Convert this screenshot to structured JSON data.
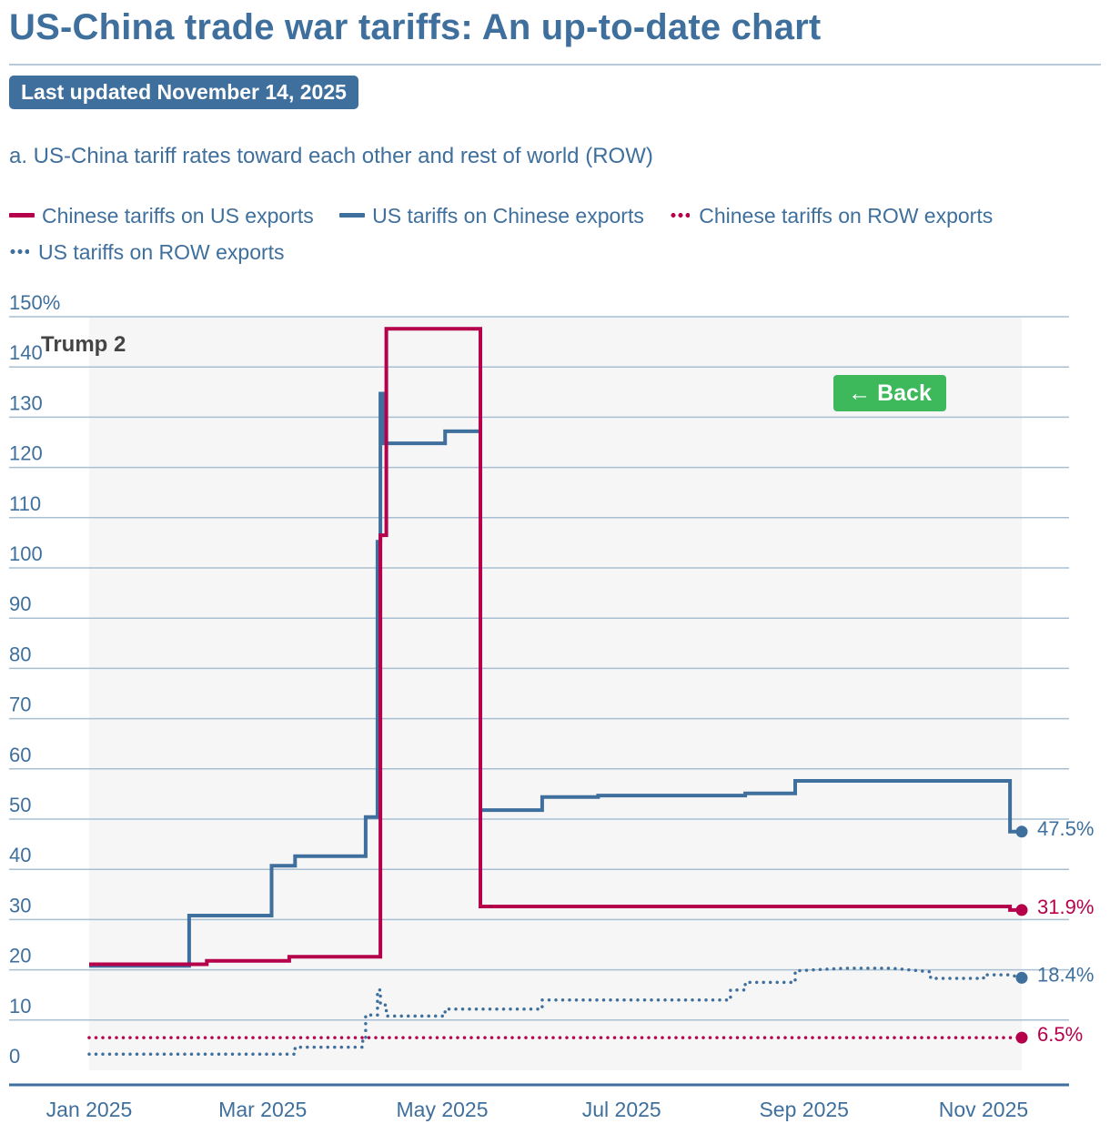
{
  "header": {
    "title": "US-China trade war tariffs: An up-to-date chart",
    "updated": "Last updated November 14, 2025",
    "subtitle": "a. US-China tariff rates toward each other and rest of world (ROW)"
  },
  "legend": [
    {
      "label": "Chinese tariffs on US exports",
      "style": "solid",
      "color": "#b5004c"
    },
    {
      "label": "US tariffs on Chinese exports",
      "style": "solid",
      "color": "#3f6f9c"
    },
    {
      "label": "Chinese tariffs on ROW exports",
      "style": "dotted",
      "color": "#b5004c"
    },
    {
      "label": "US tariffs on ROW exports",
      "style": "dotted",
      "color": "#3f6f9c"
    }
  ],
  "controls": {
    "back_label": "← Back"
  },
  "chart_data": {
    "type": "line",
    "annotation": "Trump 2",
    "y_unit_label": "150%",
    "ylim": [
      0,
      150
    ],
    "y_ticks": [
      0,
      10,
      20,
      30,
      40,
      50,
      60,
      70,
      80,
      90,
      100,
      110,
      120,
      130,
      140
    ],
    "xlim": [
      "2025-01-01",
      "2025-11-14"
    ],
    "x_ticks": [
      {
        "date": "2025-01-01",
        "label": "Jan 2025"
      },
      {
        "date": "2025-03-01",
        "label": "Mar 2025"
      },
      {
        "date": "2025-05-01",
        "label": "May 2025"
      },
      {
        "date": "2025-07-01",
        "label": "Jul 2025"
      },
      {
        "date": "2025-09-01",
        "label": "Sep 2025"
      },
      {
        "date": "2025-11-01",
        "label": "Nov 2025"
      }
    ],
    "shaded_region": [
      "2025-01-01",
      "2025-11-14"
    ],
    "grid": true,
    "legend_position": "top",
    "series": [
      {
        "name": "Chinese tariffs on US exports",
        "style": "solid",
        "color": "#b5004c",
        "end_label": "31.9%",
        "points": [
          [
            "2025-01-01",
            21.1
          ],
          [
            "2025-02-10",
            21.1
          ],
          [
            "2025-02-10",
            21.8
          ],
          [
            "2025-03-10",
            21.8
          ],
          [
            "2025-03-10",
            22.6
          ],
          [
            "2025-04-10",
            22.6
          ],
          [
            "2025-04-10",
            106.5
          ],
          [
            "2025-04-12",
            106.5
          ],
          [
            "2025-04-12",
            147.6
          ],
          [
            "2025-05-14",
            147.6
          ],
          [
            "2025-05-14",
            32.6
          ],
          [
            "2025-11-10",
            32.6
          ],
          [
            "2025-11-10",
            31.9
          ],
          [
            "2025-11-14",
            31.9
          ]
        ]
      },
      {
        "name": "US tariffs on Chinese exports",
        "style": "solid",
        "color": "#3f6f9c",
        "end_label": "47.5%",
        "points": [
          [
            "2025-01-01",
            20.8
          ],
          [
            "2025-02-04",
            20.8
          ],
          [
            "2025-02-04",
            30.8
          ],
          [
            "2025-03-04",
            30.8
          ],
          [
            "2025-03-04",
            40.7
          ],
          [
            "2025-03-12",
            40.7
          ],
          [
            "2025-03-12",
            42.6
          ],
          [
            "2025-04-05",
            42.6
          ],
          [
            "2025-04-05",
            50.4
          ],
          [
            "2025-04-09",
            50.4
          ],
          [
            "2025-04-09",
            105.2
          ],
          [
            "2025-04-10",
            105.2
          ],
          [
            "2025-04-10",
            134.7
          ],
          [
            "2025-04-11",
            134.7
          ],
          [
            "2025-04-11",
            124.8
          ],
          [
            "2025-05-02",
            124.8
          ],
          [
            "2025-05-02",
            127.2
          ],
          [
            "2025-05-14",
            127.2
          ],
          [
            "2025-05-14",
            51.8
          ],
          [
            "2025-06-04",
            51.8
          ],
          [
            "2025-06-04",
            54.4
          ],
          [
            "2025-06-23",
            54.4
          ],
          [
            "2025-06-23",
            54.7
          ],
          [
            "2025-08-12",
            54.7
          ],
          [
            "2025-08-12",
            55.1
          ],
          [
            "2025-08-29",
            55.1
          ],
          [
            "2025-08-29",
            57.6
          ],
          [
            "2025-11-10",
            57.6
          ],
          [
            "2025-11-10",
            47.5
          ],
          [
            "2025-11-14",
            47.5
          ]
        ]
      },
      {
        "name": "Chinese tariffs on ROW exports",
        "style": "dotted",
        "color": "#b5004c",
        "end_label": "6.5%",
        "points": [
          [
            "2025-01-01",
            6.5
          ],
          [
            "2025-11-14",
            6.5
          ]
        ]
      },
      {
        "name": "US tariffs on ROW exports",
        "style": "dotted",
        "color": "#3f6f9c",
        "end_label": "18.4%",
        "points": [
          [
            "2025-01-01",
            3.2
          ],
          [
            "2025-03-12",
            3.2
          ],
          [
            "2025-03-12",
            4.6
          ],
          [
            "2025-04-04",
            4.6
          ],
          [
            "2025-04-04",
            6.4
          ],
          [
            "2025-04-05",
            6.4
          ],
          [
            "2025-04-05",
            11.0
          ],
          [
            "2025-04-09",
            11.0
          ],
          [
            "2025-04-09",
            16.0
          ],
          [
            "2025-04-10",
            16.0
          ],
          [
            "2025-04-10",
            13.0
          ],
          [
            "2025-04-12",
            13.0
          ],
          [
            "2025-04-12",
            10.8
          ],
          [
            "2025-05-02",
            10.8
          ],
          [
            "2025-05-02",
            12.2
          ],
          [
            "2025-06-04",
            12.2
          ],
          [
            "2025-06-04",
            14.0
          ],
          [
            "2025-08-07",
            14.0
          ],
          [
            "2025-08-07",
            16.0
          ],
          [
            "2025-08-12",
            16.0
          ],
          [
            "2025-08-12",
            17.5
          ],
          [
            "2025-08-29",
            17.5
          ],
          [
            "2025-08-29",
            19.8
          ],
          [
            "2025-09-15",
            20.3
          ],
          [
            "2025-10-01",
            20.3
          ],
          [
            "2025-10-14",
            19.6
          ],
          [
            "2025-10-14",
            18.3
          ],
          [
            "2025-11-01",
            18.3
          ],
          [
            "2025-11-01",
            19.0
          ],
          [
            "2025-11-10",
            19.0
          ],
          [
            "2025-11-14",
            18.4
          ]
        ]
      }
    ]
  }
}
